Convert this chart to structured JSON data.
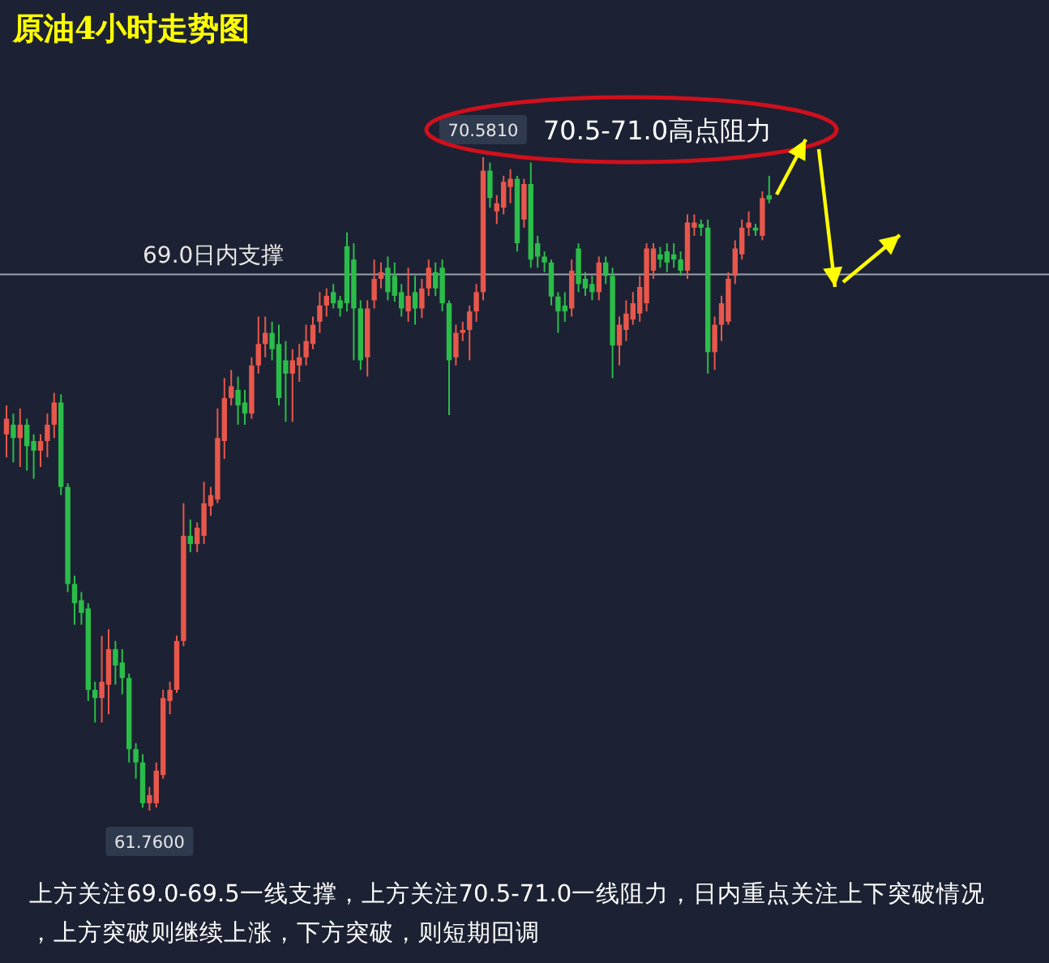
{
  "chart_data": {
    "type": "candlestick",
    "title": "原油4小时走势图",
    "categories": [
      null,
      null,
      null,
      null,
      null,
      null,
      null,
      null,
      null,
      null,
      null,
      null,
      null,
      null,
      null,
      null,
      null,
      null,
      null,
      null,
      null,
      null,
      null,
      null,
      null,
      null,
      null,
      null,
      null,
      null,
      null,
      null,
      null,
      null,
      null,
      null,
      null,
      null,
      null,
      null,
      null,
      null,
      null,
      null,
      null,
      null,
      null,
      null,
      null,
      null,
      null,
      null,
      null,
      null,
      null,
      null,
      null,
      null,
      null,
      null,
      null,
      null,
      null,
      null,
      null,
      null,
      null,
      null,
      null,
      null,
      null,
      null,
      null,
      null,
      null,
      null,
      null,
      null,
      null,
      null,
      null,
      null,
      null,
      null,
      null,
      null,
      null,
      null,
      null,
      null,
      null,
      null,
      null,
      null,
      null,
      null,
      null,
      null,
      null,
      null,
      null,
      null,
      null,
      null,
      null,
      null,
      null,
      null,
      null,
      null,
      null,
      null,
      null
    ],
    "ohlc": [
      [
        66.84,
        67.23,
        66.53,
        67.05
      ],
      [
        66.97,
        67.12,
        66.46,
        66.79
      ],
      [
        66.79,
        67.19,
        66.4,
        66.97
      ],
      [
        66.97,
        67.05,
        66.35,
        66.68
      ],
      [
        66.75,
        66.84,
        66.24,
        66.62
      ],
      [
        66.62,
        66.84,
        66.4,
        66.75
      ],
      [
        66.75,
        67.12,
        66.53,
        66.97
      ],
      [
        66.97,
        67.4,
        66.79,
        67.27
      ],
      [
        67.27,
        67.38,
        66.02,
        66.13
      ],
      [
        66.13,
        66.18,
        64.71,
        64.82
      ],
      [
        64.82,
        64.93,
        64.27,
        64.56
      ],
      [
        64.6,
        64.71,
        64.27,
        64.43
      ],
      [
        64.49,
        64.56,
        63.24,
        63.39
      ],
      [
        63.39,
        63.5,
        62.95,
        63.28
      ],
      [
        63.28,
        64.12,
        62.95,
        63.5
      ],
      [
        63.46,
        64.21,
        63.06,
        63.94
      ],
      [
        63.94,
        64.05,
        63.46,
        63.72
      ],
      [
        63.76,
        63.94,
        63.33,
        63.55
      ],
      [
        63.55,
        63.61,
        62.41,
        62.59
      ],
      [
        62.59,
        62.67,
        62.19,
        62.41
      ],
      [
        62.41,
        62.52,
        61.8,
        61.86
      ],
      [
        61.86,
        62.08,
        61.76,
        61.97
      ],
      [
        61.86,
        62.41,
        61.8,
        62.3
      ],
      [
        62.24,
        63.39,
        62.19,
        63.28
      ],
      [
        63.24,
        63.5,
        63.06,
        63.39
      ],
      [
        63.39,
        64.12,
        63.35,
        64.05
      ],
      [
        64.05,
        65.91,
        63.98,
        65.47
      ],
      [
        65.47,
        65.69,
        65.25,
        65.36
      ],
      [
        65.36,
        65.65,
        65.25,
        65.58
      ],
      [
        65.47,
        66.2,
        65.36,
        65.91
      ],
      [
        65.87,
        66.13,
        65.74,
        66.02
      ],
      [
        65.96,
        67.19,
        65.91,
        66.79
      ],
      [
        66.75,
        67.6,
        66.51,
        67.33
      ],
      [
        67.33,
        67.71,
        67.23,
        67.49
      ],
      [
        67.44,
        67.62,
        66.97,
        67.23
      ],
      [
        67.27,
        67.44,
        66.97,
        67.12
      ],
      [
        67.12,
        67.88,
        67.05,
        67.77
      ],
      [
        67.77,
        68.43,
        67.66,
        68.06
      ],
      [
        68.06,
        68.43,
        67.88,
        68.21
      ],
      [
        68.21,
        68.36,
        67.84,
        67.99
      ],
      [
        68.06,
        68.32,
        67.23,
        67.33
      ],
      [
        67.84,
        68.1,
        67.01,
        67.66
      ],
      [
        67.66,
        67.99,
        67.01,
        67.84
      ],
      [
        67.77,
        68.06,
        67.55,
        67.88
      ],
      [
        67.88,
        68.32,
        67.77,
        68.1
      ],
      [
        68.06,
        68.43,
        67.99,
        68.32
      ],
      [
        68.36,
        68.76,
        68.21,
        68.58
      ],
      [
        68.58,
        68.81,
        68.43,
        68.71
      ],
      [
        68.76,
        68.87,
        68.54,
        68.61
      ],
      [
        68.65,
        68.71,
        68.43,
        68.54
      ],
      [
        69.38,
        69.57,
        68.5,
        68.61
      ],
      [
        69.2,
        69.42,
        67.84,
        68.54
      ],
      [
        68.54,
        68.65,
        67.71,
        67.84
      ],
      [
        67.88,
        68.65,
        67.62,
        68.54
      ],
      [
        68.65,
        69.2,
        68.54,
        68.94
      ],
      [
        68.94,
        69.16,
        68.81,
        69.03
      ],
      [
        69.09,
        69.24,
        68.65,
        68.76
      ],
      [
        68.98,
        69.16,
        68.63,
        68.71
      ],
      [
        68.76,
        68.87,
        68.43,
        68.54
      ],
      [
        68.5,
        69.09,
        68.36,
        68.71
      ],
      [
        68.76,
        68.98,
        68.32,
        68.54
      ],
      [
        68.54,
        68.94,
        68.41,
        68.81
      ],
      [
        68.81,
        69.2,
        68.71,
        69.09
      ],
      [
        69.03,
        69.16,
        68.71,
        68.81
      ],
      [
        69.09,
        69.2,
        68.5,
        68.61
      ],
      [
        68.61,
        68.65,
        67.1,
        67.84
      ],
      [
        67.88,
        68.32,
        67.77,
        68.21
      ],
      [
        68.21,
        68.36,
        68.1,
        68.25
      ],
      [
        68.25,
        68.58,
        67.84,
        68.5
      ],
      [
        68.5,
        68.87,
        68.36,
        68.76
      ],
      [
        68.76,
        70.581,
        68.65,
        70.4
      ],
      [
        70.4,
        70.51,
        69.9,
        70.03
      ],
      [
        69.85,
        70.07,
        69.68,
        69.96
      ],
      [
        69.9,
        70.33,
        69.81,
        70.25
      ],
      [
        70.18,
        70.42,
        69.96,
        70.29
      ],
      [
        70.29,
        70.33,
        69.31,
        69.42
      ],
      [
        69.74,
        70.29,
        69.63,
        70.22
      ],
      [
        70.22,
        70.51,
        69.09,
        69.2
      ],
      [
        69.42,
        69.52,
        69.09,
        69.24
      ],
      [
        69.24,
        69.31,
        69.03,
        69.16
      ],
      [
        69.16,
        69.2,
        68.58,
        68.7
      ],
      [
        68.7,
        68.76,
        68.21,
        68.5
      ],
      [
        68.58,
        68.76,
        68.36,
        68.5
      ],
      [
        68.54,
        69.2,
        68.43,
        69.05
      ],
      [
        69.35,
        69.42,
        68.76,
        68.87
      ],
      [
        68.94,
        69.03,
        68.71,
        68.81
      ],
      [
        68.87,
        68.98,
        68.65,
        68.76
      ],
      [
        68.76,
        69.24,
        68.65,
        69.16
      ],
      [
        69.16,
        69.24,
        68.87,
        68.98
      ],
      [
        68.98,
        69.09,
        67.6,
        68.04
      ],
      [
        68.04,
        68.43,
        67.77,
        68.32
      ],
      [
        68.25,
        68.65,
        68.1,
        68.47
      ],
      [
        68.39,
        68.76,
        68.32,
        68.61
      ],
      [
        68.47,
        68.98,
        68.36,
        68.83
      ],
      [
        68.61,
        69.42,
        68.5,
        69.35
      ],
      [
        69.05,
        69.42,
        68.94,
        69.35
      ],
      [
        69.27,
        69.37,
        69.09,
        69.2
      ],
      [
        69.31,
        69.42,
        69.03,
        69.16
      ],
      [
        69.27,
        69.42,
        69.09,
        69.2
      ],
      [
        69.2,
        69.31,
        68.98,
        69.05
      ],
      [
        69.05,
        69.81,
        68.94,
        69.7
      ],
      [
        69.63,
        69.81,
        69.52,
        69.7
      ],
      [
        69.68,
        69.74,
        69.52,
        69.63
      ],
      [
        69.63,
        69.74,
        67.66,
        67.95
      ],
      [
        67.95,
        68.43,
        67.71,
        68.32
      ],
      [
        68.32,
        68.71,
        68.1,
        68.61
      ],
      [
        68.36,
        69.03,
        68.32,
        68.94
      ],
      [
        68.98,
        69.46,
        68.87,
        69.35
      ],
      [
        69.27,
        69.74,
        69.2,
        69.63
      ],
      [
        69.63,
        69.85,
        69.52,
        69.7
      ],
      [
        69.63,
        69.68,
        69.52,
        69.59
      ],
      [
        69.52,
        70.12,
        69.46,
        70.03
      ],
      [
        70.07,
        70.33,
        69.96,
        70.01
      ]
    ],
    "ref_lines": [
      {
        "axis": "y",
        "value": 69.0,
        "label": "69.0日内支撑",
        "color": "#9aa0aa"
      }
    ],
    "annotations": [
      "70.5-71.0高点阻力",
      {
        "text": "70.5810",
        "y": 70.581
      },
      {
        "text": "61.7600",
        "y": 61.76
      },
      "上方关注69.0-69.5一线支撑，上方关注70.5-71.0一线阻力，日内重点关注上下突破情况，上方突破则继续上涨，下方突破，则短期回调"
    ]
  }
}
